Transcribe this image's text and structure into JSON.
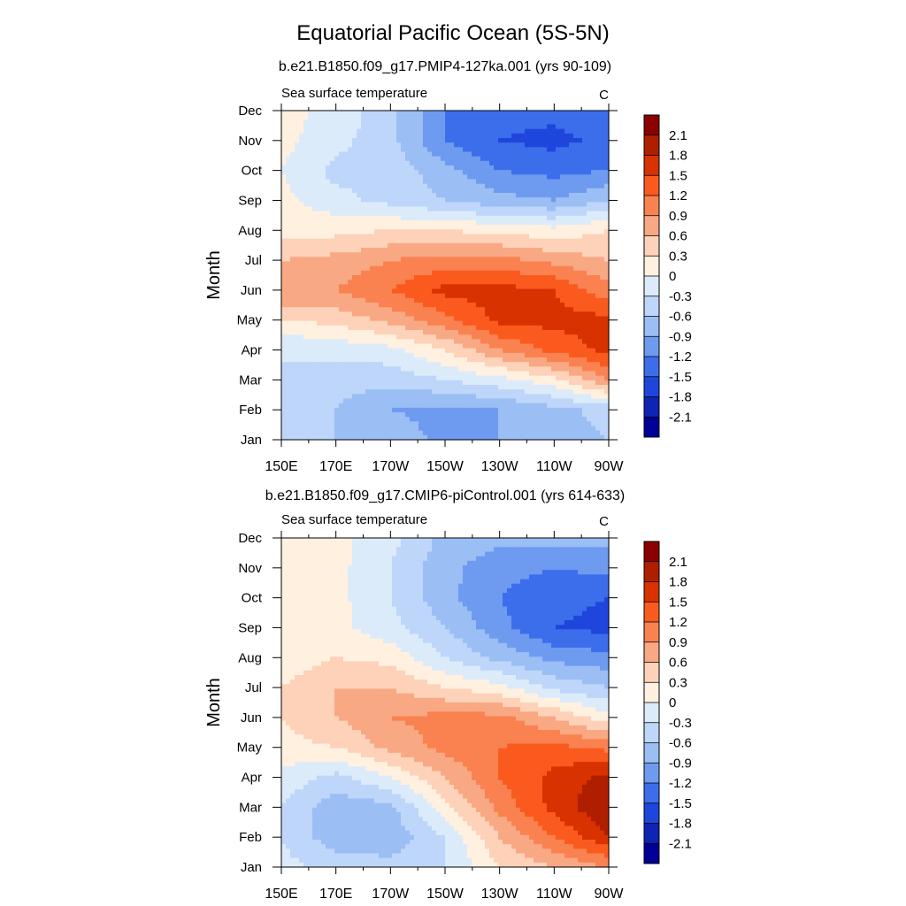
{
  "figure": {
    "title": "Equatorial Pacific Ocean (5S-5N)"
  },
  "colorbar": {
    "levels": [
      "2.1",
      "1.8",
      "1.5",
      "1.2",
      "0.9",
      "0.6",
      "0.3",
      "0",
      "-0.3",
      "-0.6",
      "-0.9",
      "-1.2",
      "-1.5",
      "-1.8",
      "-2.1"
    ],
    "colors": [
      "#8b0000",
      "#b01e00",
      "#d83200",
      "#fb5a1e",
      "#fa8250",
      "#f9a884",
      "#fdd2b8",
      "#fff0e0",
      "#dcebfa",
      "#bdd6fa",
      "#9bbef5",
      "#6e9bf0",
      "#3c6eeb",
      "#1e46dc",
      "#0f23b4",
      "#000096"
    ]
  },
  "chart_data": [
    {
      "type": "heatmap",
      "subtitle": "b.e21.B1850.f09_g17.PMIP4-127ka.001 (yrs 90-109)",
      "left_label": "Sea surface temperature",
      "right_label": "C",
      "ylabel": "Month",
      "xlabel": "",
      "x_ticks": [
        "150E",
        "170E",
        "170W",
        "150W",
        "130W",
        "110W",
        "90W"
      ],
      "x_lon": [
        150,
        170,
        190,
        210,
        230,
        250,
        270
      ],
      "y_ticks": [
        "Jan",
        "Feb",
        "Mar",
        "Apr",
        "May",
        "Jun",
        "Jul",
        "Aug",
        "Sep",
        "Oct",
        "Nov",
        "Dec"
      ],
      "x_range": [
        150,
        270
      ],
      "y_range": [
        1,
        12
      ],
      "grid_lon": [
        150,
        170,
        190,
        210,
        230,
        250,
        270
      ],
      "grid_month": [
        "Jan",
        "Feb",
        "Mar",
        "Apr",
        "May",
        "Jun",
        "Jul",
        "Aug",
        "Sep",
        "Oct",
        "Nov",
        "Dec"
      ],
      "values": [
        [
          -0.5,
          -0.6,
          -0.7,
          -1.0,
          -0.9,
          -0.7,
          -0.6
        ],
        [
          -0.5,
          -0.6,
          -0.9,
          -1.0,
          -0.9,
          -0.7,
          -0.5
        ],
        [
          -0.3,
          -0.5,
          -0.5,
          -0.3,
          -0.1,
          0.2,
          0.9
        ],
        [
          -0.3,
          -0.2,
          -0.1,
          0.3,
          0.9,
          1.3,
          1.6
        ],
        [
          0.3,
          0.4,
          0.7,
          1.1,
          1.6,
          1.6,
          1.6
        ],
        [
          0.9,
          0.9,
          1.2,
          1.6,
          1.6,
          1.5,
          1.0
        ],
        [
          0.6,
          0.7,
          0.9,
          1.0,
          1.0,
          0.8,
          0.6
        ],
        [
          0.2,
          0.2,
          0.3,
          0.3,
          0.2,
          0.1,
          0.3
        ],
        [
          0.1,
          -0.2,
          -0.4,
          -0.6,
          -0.8,
          -0.9,
          -0.6
        ],
        [
          0.0,
          -0.4,
          -0.4,
          -0.8,
          -1.2,
          -1.3,
          -1.2
        ],
        [
          0.1,
          -0.2,
          -0.5,
          -1.2,
          -1.5,
          -1.6,
          -1.4
        ],
        [
          0.1,
          -0.1,
          -0.5,
          -1.2,
          -1.4,
          -1.4,
          -1.3
        ]
      ]
    },
    {
      "type": "heatmap",
      "subtitle": "b.e21.B1850.f09_g17.CMIP6-piControl.001 (yrs 614-633)",
      "left_label": "Sea surface temperature",
      "right_label": "C",
      "ylabel": "Month",
      "xlabel": "",
      "x_ticks": [
        "150E",
        "170E",
        "170W",
        "150W",
        "130W",
        "110W",
        "90W"
      ],
      "x_lon": [
        150,
        170,
        190,
        210,
        230,
        250,
        270
      ],
      "y_ticks": [
        "Jan",
        "Feb",
        "Mar",
        "Apr",
        "May",
        "Jun",
        "Jul",
        "Aug",
        "Sep",
        "Oct",
        "Nov",
        "Dec"
      ],
      "x_range": [
        150,
        270
      ],
      "y_range": [
        1,
        12
      ],
      "grid_lon": [
        150,
        170,
        190,
        210,
        230,
        250,
        270
      ],
      "grid_month": [
        "Jan",
        "Feb",
        "Mar",
        "Apr",
        "May",
        "Jun",
        "Jul",
        "Aug",
        "Sep",
        "Oct",
        "Nov",
        "Dec"
      ],
      "values": [
        [
          -0.2,
          -0.4,
          -0.5,
          -0.3,
          0.3,
          0.6,
          0.9
        ],
        [
          -0.3,
          -0.8,
          -0.8,
          -0.3,
          0.6,
          1.2,
          1.8
        ],
        [
          -0.3,
          -0.8,
          -0.7,
          0.2,
          1.0,
          1.6,
          2.1
        ],
        [
          -0.1,
          -0.4,
          0.0,
          0.6,
          1.2,
          1.6,
          1.9
        ],
        [
          0.2,
          0.3,
          0.7,
          1.0,
          1.2,
          1.3,
          1.1
        ],
        [
          0.3,
          0.6,
          0.9,
          1.0,
          1.0,
          0.6,
          0.1
        ],
        [
          0.3,
          0.6,
          0.6,
          0.3,
          0.1,
          -0.4,
          -0.6
        ],
        [
          0.1,
          0.3,
          0.2,
          -0.3,
          -0.7,
          -1.0,
          -1.1
        ],
        [
          0.2,
          0.1,
          -0.2,
          -0.6,
          -1.1,
          -1.5,
          -1.6
        ],
        [
          0.2,
          0.1,
          -0.3,
          -0.8,
          -1.2,
          -1.4,
          -1.5
        ],
        [
          0.3,
          0.1,
          -0.3,
          -0.8,
          -1.1,
          -1.2,
          -1.1
        ],
        [
          0.2,
          0.1,
          -0.2,
          -0.7,
          -0.8,
          -0.8,
          -0.8
        ]
      ]
    }
  ]
}
